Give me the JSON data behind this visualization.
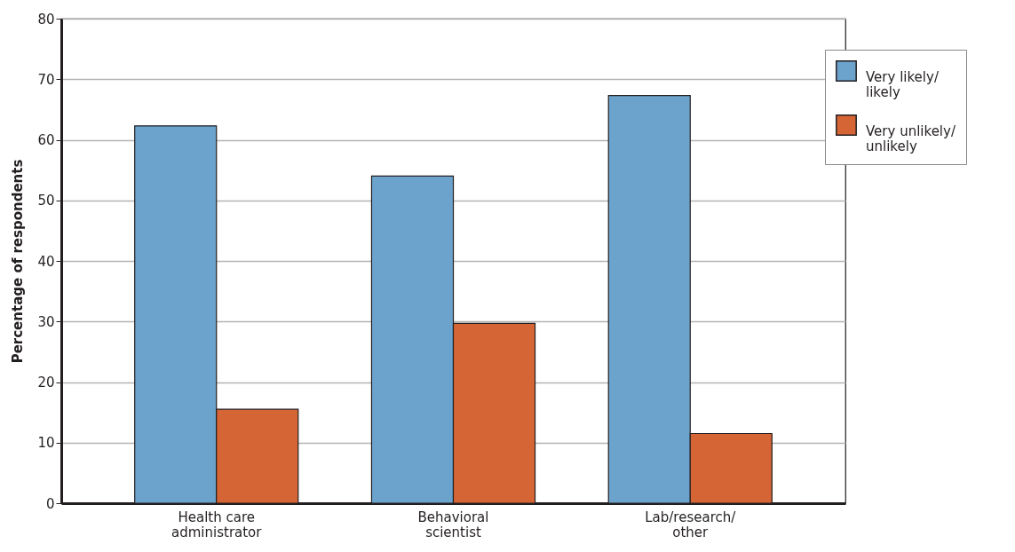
{
  "chart_data": {
    "type": "bar",
    "ylabel": "Percentage of respondents",
    "categories": [
      "Health care administrator",
      "Behavioral scientist",
      "Lab/research/other"
    ],
    "series": [
      {
        "name": "Very likely/likely",
        "color": "#6ca3cc",
        "values": [
          62.3,
          54.0,
          67.3
        ]
      },
      {
        "name": "Very unlikely/unlikely",
        "color": "#d66536",
        "values": [
          15.5,
          29.7,
          11.5
        ]
      }
    ],
    "ylim": [
      0,
      80
    ],
    "yticks": [
      0,
      10,
      20,
      30,
      40,
      50,
      60,
      70,
      80
    ],
    "grid": "y",
    "legend": "top right"
  }
}
